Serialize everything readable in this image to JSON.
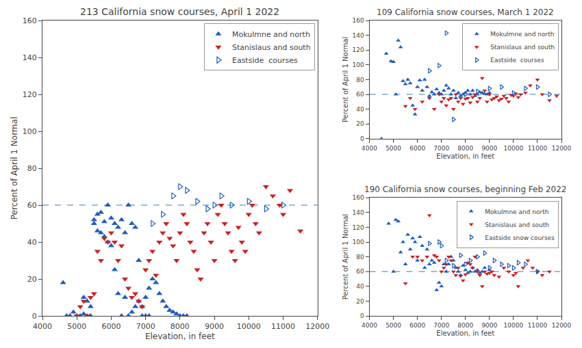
{
  "chart_data": [
    {
      "type": "scatter",
      "title": "213 California snow courses, April 1 2022",
      "xlabel": "Elevation, in feet",
      "ylabel": "Percent of April 1 Normal",
      "xlim": [
        4000,
        12000
      ],
      "ylim": [
        0,
        160
      ],
      "xticks": [
        4000,
        5000,
        6000,
        7000,
        8000,
        9000,
        10000,
        11000,
        12000
      ],
      "yticks": [
        0,
        20,
        40,
        60,
        80,
        100,
        120,
        140,
        160
      ],
      "grid": false,
      "legend": "upper right",
      "hlines": [
        {
          "y": 60,
          "color": "#7da7cc",
          "line_style": "dashed"
        }
      ],
      "series": [
        {
          "name": "Mokulmne and north",
          "color": "#1f5dbe",
          "marker": "triangle-up",
          "x": [
            4600,
            4700,
            4800,
            4900,
            5000,
            5100,
            5200,
            5200,
            5300,
            5300,
            5400,
            5400,
            5500,
            5500,
            5600,
            5600,
            5700,
            5700,
            5800,
            5800,
            5900,
            5900,
            6000,
            6000,
            6100,
            6100,
            6200,
            6200,
            6300,
            6300,
            6400,
            6400,
            6500,
            6500,
            6600,
            6600,
            6700,
            6700,
            6800,
            6800,
            6900,
            6900,
            7000,
            7000,
            7100,
            7100,
            7200,
            7300,
            7400,
            7500,
            7600,
            7700,
            7800,
            7900,
            8000,
            8100,
            8200
          ],
          "values": [
            18,
            0,
            0,
            2,
            0,
            0,
            1,
            10,
            0,
            8,
            0,
            5,
            50,
            52,
            46,
            55,
            45,
            56,
            43,
            51,
            40,
            60,
            38,
            53,
            25,
            50,
            12,
            48,
            0,
            52,
            10,
            45,
            0,
            60,
            2,
            50,
            5,
            48,
            8,
            30,
            0,
            5,
            0,
            10,
            0,
            15,
            20,
            18,
            12,
            8,
            5,
            3,
            2,
            1,
            0,
            0,
            0
          ]
        },
        {
          "name": "Stanislaus and south",
          "color": "#cc2222",
          "marker": "triangle-down",
          "x": [
            5000,
            5100,
            5200,
            5300,
            5400,
            5500,
            5600,
            5700,
            5800,
            5900,
            6000,
            6100,
            6200,
            6300,
            6400,
            6500,
            6600,
            6700,
            6800,
            6900,
            7000,
            7100,
            7200,
            7300,
            7400,
            7500,
            7600,
            7700,
            7800,
            7900,
            8000,
            8100,
            8200,
            8300,
            8400,
            8500,
            8600,
            8700,
            8800,
            8900,
            9000,
            9100,
            9200,
            9300,
            9400,
            9500,
            9600,
            9700,
            9800,
            9900,
            10000,
            10100,
            10200,
            10300,
            10500,
            10700,
            10900,
            11000,
            11200,
            11500
          ],
          "values": [
            0,
            5,
            8,
            0,
            10,
            12,
            35,
            30,
            42,
            40,
            45,
            40,
            30,
            38,
            20,
            15,
            10,
            12,
            8,
            5,
            25,
            30,
            35,
            22,
            40,
            45,
            50,
            42,
            38,
            30,
            45,
            55,
            50,
            40,
            35,
            25,
            20,
            45,
            50,
            40,
            30,
            55,
            60,
            50,
            45,
            35,
            30,
            48,
            40,
            35,
            55,
            60,
            50,
            45,
            70,
            65,
            60,
            55,
            68,
            46
          ]
        },
        {
          "name": "Eastside  courses",
          "color": "#1f5dbe",
          "marker": "triangle-right-open",
          "x": [
            7200,
            7500,
            7800,
            8000,
            8200,
            8500,
            8800,
            9000,
            9200,
            9500,
            10000,
            10500,
            11000
          ],
          "values": [
            50,
            55,
            65,
            70,
            68,
            62,
            58,
            60,
            65,
            60,
            62,
            58,
            60
          ]
        }
      ]
    },
    {
      "type": "scatter",
      "title": "109 California snow courses, March 1 2022",
      "xlabel": "Elevation, in feet",
      "ylabel": "Percent of April 1 Normal",
      "xlim": [
        4000,
        12000
      ],
      "ylim": [
        0,
        160
      ],
      "xticks": [
        4000,
        5000,
        6000,
        7000,
        8000,
        9000,
        10000,
        11000,
        12000
      ],
      "yticks": [
        0,
        20,
        40,
        60,
        80,
        100,
        120,
        140,
        160
      ],
      "grid": false,
      "legend": "upper right",
      "hlines": [
        {
          "y": 60,
          "color": "#7da7cc",
          "line_style": "dashed"
        }
      ],
      "series": [
        {
          "name": "Mokulmne and north",
          "color": "#1f5dbe",
          "marker": "triangle-up",
          "x": [
            4500,
            4700,
            4900,
            5000,
            5100,
            5200,
            5300,
            5400,
            5500,
            5600,
            5700,
            5800,
            5900,
            6000,
            6100,
            6200,
            6300,
            6400,
            6500,
            6600,
            6700,
            6800,
            6900,
            7000,
            7100,
            7200,
            7300,
            7400,
            7500,
            7600,
            7700,
            7800,
            7900,
            8000,
            8100,
            8200,
            8300,
            8400,
            8500,
            8600,
            8700,
            8800,
            8900,
            9000
          ],
          "values": [
            0,
            115,
            105,
            104,
            60,
            133,
            124,
            78,
            74,
            80,
            75,
            45,
            33,
            70,
            79,
            65,
            80,
            70,
            58,
            63,
            60,
            67,
            62,
            60,
            65,
            72,
            68,
            60,
            65,
            55,
            62,
            58,
            60,
            62,
            65,
            60,
            65,
            58,
            60,
            63,
            62,
            61,
            60,
            62
          ]
        },
        {
          "name": "Stanislaus and south",
          "color": "#cc2222",
          "marker": "triangle-down",
          "x": [
            5500,
            5700,
            5900,
            6200,
            6500,
            6700,
            6900,
            7000,
            7100,
            7200,
            7300,
            7400,
            7500,
            7600,
            7700,
            7800,
            7900,
            8000,
            8100,
            8200,
            8300,
            8400,
            8500,
            8600,
            8700,
            8800,
            8900,
            9000,
            9100,
            9200,
            9300,
            9400,
            9500,
            9600,
            9700,
            9800,
            9900,
            10000,
            10100,
            10200,
            10300,
            10500,
            10700,
            11000,
            11200,
            11500,
            11800
          ],
          "values": [
            44,
            55,
            40,
            50,
            55,
            40,
            60,
            50,
            55,
            45,
            53,
            55,
            40,
            60,
            50,
            55,
            47,
            54,
            55,
            49,
            56,
            60,
            50,
            55,
            82,
            65,
            50,
            60,
            53,
            55,
            57,
            52,
            54,
            58,
            55,
            50,
            59,
            58,
            61,
            56,
            60,
            62,
            72,
            80,
            60,
            52,
            58
          ]
        },
        {
          "name": "Eastside  courses",
          "color": "#1f5dbe",
          "marker": "triangle-right-open",
          "x": [
            6500,
            6900,
            7200,
            7500,
            8000,
            8500,
            9000,
            9500,
            10000,
            10500,
            11000,
            11500
          ],
          "values": [
            92,
            99,
            143,
            26,
            60,
            64,
            68,
            70,
            62,
            68,
            70,
            60
          ]
        }
      ]
    },
    {
      "type": "scatter",
      "title": "190 California snow courses, beginning Feb 2022",
      "xlabel": "Elevation, in feet",
      "ylabel": "Percent of April 1 Normal",
      "xlim": [
        4000,
        12000
      ],
      "ylim": [
        0,
        160
      ],
      "xticks": [
        4000,
        5000,
        6000,
        7000,
        8000,
        9000,
        10000,
        11000,
        12000
      ],
      "yticks": [
        0,
        20,
        40,
        60,
        80,
        100,
        120,
        140,
        160
      ],
      "grid": false,
      "legend": "upper right",
      "hlines": [
        {
          "y": 60,
          "color": "#7da7cc",
          "line_style": "dashed"
        }
      ],
      "series": [
        {
          "name": "Mokulmne and north",
          "color": "#1f5dbe",
          "marker": "triangle-up",
          "x": [
            4800,
            5000,
            5100,
            5200,
            5300,
            5400,
            5500,
            5600,
            5700,
            5800,
            5900,
            6000,
            6100,
            6200,
            6300,
            6400,
            6500,
            6600,
            6700,
            6800,
            6900,
            7000,
            7100,
            7200,
            7300,
            7400,
            7500,
            7600,
            7700,
            7800,
            7900,
            8000,
            8100,
            8200,
            8300,
            8400,
            8500,
            8600,
            8700,
            8800,
            9000
          ],
          "values": [
            125,
            60,
            130,
            128,
            86,
            100,
            70,
            110,
            90,
            105,
            100,
            75,
            107,
            95,
            65,
            90,
            70,
            75,
            72,
            35,
            45,
            40,
            70,
            60,
            70,
            80,
            75,
            65,
            60,
            55,
            68,
            62,
            58,
            60,
            65,
            60,
            62,
            58,
            60,
            65,
            62
          ]
        },
        {
          "name": "Stanislaus and south",
          "color": "#cc2222",
          "marker": "triangle-down",
          "x": [
            5500,
            5800,
            6000,
            6200,
            6400,
            6500,
            6700,
            6800,
            6900,
            7000,
            7100,
            7200,
            7300,
            7400,
            7500,
            7600,
            7700,
            7800,
            7900,
            8000,
            8100,
            8200,
            8300,
            8400,
            8500,
            8600,
            8700,
            8800,
            8900,
            9000,
            9100,
            9200,
            9400,
            9600,
            9800,
            10000,
            10100,
            10200,
            10400,
            10600,
            10800,
            11000,
            11200,
            11500
          ],
          "values": [
            44,
            80,
            80,
            75,
            80,
            136,
            82,
            80,
            75,
            60,
            65,
            70,
            80,
            75,
            60,
            55,
            65,
            54,
            48,
            56,
            72,
            70,
            65,
            80,
            60,
            55,
            40,
            60,
            57,
            58,
            60,
            55,
            53,
            65,
            60,
            55,
            58,
            40,
            65,
            75,
            65,
            60,
            55,
            60
          ]
        },
        {
          "name": "Eastside snow courses",
          "color": "#1f5dbe",
          "marker": "triangle-right-open",
          "x": [
            6500,
            6900,
            7000,
            7200,
            7500,
            7800,
            8000,
            8200,
            8500,
            8800,
            9000,
            9200,
            9500,
            9800,
            10000,
            10200,
            10500,
            11000
          ],
          "values": [
            98,
            100,
            95,
            75,
            68,
            82,
            70,
            75,
            80,
            85,
            65,
            75,
            70,
            68,
            65,
            72,
            70,
            60
          ]
        }
      ]
    }
  ]
}
